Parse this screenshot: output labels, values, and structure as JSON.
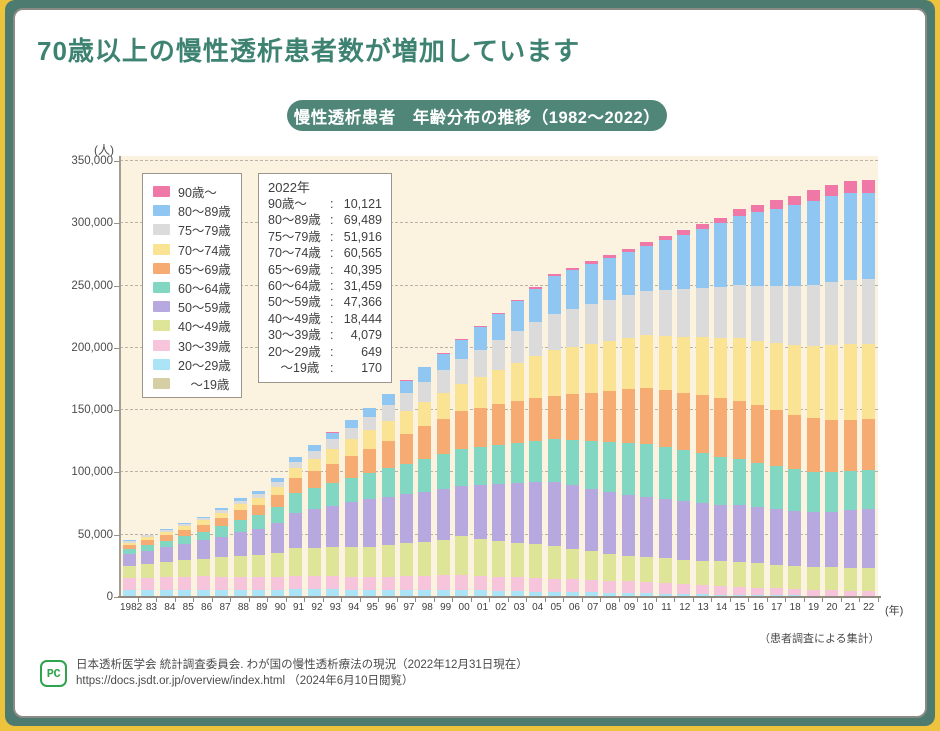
{
  "header": {
    "title": "70歳以上の慢性透析患者数が増加しています",
    "badge": "慢性透析患者　年齢分布の推移（1982〜2022）"
  },
  "chart_data": {
    "type": "bar",
    "stacked": true,
    "title": "慢性透析患者　年齢分布の推移（1982〜2022）",
    "ylabel": "(人)",
    "xlabel": "(年)",
    "ylim": [
      0,
      350000
    ],
    "ytick_interval": 50000,
    "grid": true,
    "legend_position": "upper-left",
    "plot_bg": "#FBF3DF",
    "source_note": "（患者調査による集計）",
    "years": [
      "1982",
      "83",
      "84",
      "85",
      "86",
      "87",
      "88",
      "89",
      "90",
      "91",
      "92",
      "93",
      "94",
      "95",
      "96",
      "97",
      "98",
      "99",
      "00",
      "01",
      "02",
      "03",
      "04",
      "05",
      "06",
      "07",
      "08",
      "09",
      "10",
      "11",
      "12",
      "13",
      "14",
      "15",
      "16",
      "17",
      "18",
      "19",
      "20",
      "21",
      "22"
    ],
    "series": [
      {
        "name": "90歳〜",
        "color": "#F078A6",
        "values": [
          20,
          20,
          25,
          30,
          30,
          45,
          60,
          75,
          100,
          150,
          160,
          170,
          185,
          200,
          280,
          360,
          440,
          520,
          600,
          820,
          1040,
          1260,
          1480,
          1700,
          1900,
          2100,
          2300,
          2550,
          2800,
          3300,
          3800,
          4300,
          4800,
          5500,
          6200,
          6900,
          7700,
          8600,
          9300,
          9800,
          10121
        ]
      },
      {
        "name": "80〜89歳",
        "color": "#8FC6F2",
        "values": [
          500,
          550,
          600,
          650,
          700,
          1300,
          1900,
          2400,
          3200,
          4000,
          4700,
          5500,
          6200,
          7000,
          8600,
          10200,
          11800,
          13500,
          15100,
          18000,
          21000,
          24000,
          27000,
          30000,
          31200,
          32400,
          33600,
          34800,
          36000,
          39800,
          43600,
          47400,
          51200,
          56000,
          59000,
          62000,
          65000,
          67500,
          69000,
          69800,
          69489
        ]
      },
      {
        "name": "75〜79歳",
        "color": "#DBDBDB",
        "values": [
          1300,
          1400,
          1600,
          1700,
          1800,
          2300,
          2800,
          3300,
          4000,
          5200,
          6500,
          7800,
          9200,
          10500,
          12500,
          14500,
          16500,
          18400,
          20200,
          22000,
          23800,
          25600,
          27300,
          29000,
          30500,
          32000,
          33500,
          34800,
          36000,
          37200,
          38400,
          39600,
          40800,
          42500,
          44000,
          45500,
          47000,
          49000,
          50500,
          51500,
          51916
        ]
      },
      {
        "name": "70〜74歳",
        "color": "#FAE493",
        "values": [
          2200,
          2500,
          2800,
          3200,
          3600,
          4200,
          4800,
          5300,
          6000,
          8000,
          9800,
          11600,
          13500,
          15500,
          16800,
          18000,
          19200,
          20400,
          21500,
          24600,
          27700,
          30800,
          33900,
          37000,
          38000,
          39000,
          40000,
          41000,
          42000,
          43500,
          45000,
          46500,
          48200,
          50000,
          52000,
          54000,
          56000,
          58000,
          60000,
          61000,
          60565
        ]
      },
      {
        "name": "65〜69歳",
        "color": "#F6AB72",
        "values": [
          3000,
          3600,
          4200,
          4900,
          5600,
          6600,
          7600,
          8400,
          9700,
          12000,
          13800,
          15500,
          17300,
          19000,
          21500,
          23900,
          26300,
          28600,
          30900,
          31800,
          32600,
          33400,
          34200,
          35000,
          37000,
          39000,
          41000,
          43000,
          45000,
          45500,
          46000,
          46500,
          47000,
          47000,
          46000,
          45000,
          44000,
          43000,
          42000,
          41000,
          40395
        ]
      },
      {
        "name": "60〜64歳",
        "color": "#82D7C2",
        "values": [
          4000,
          4700,
          5400,
          6100,
          6800,
          8300,
          9800,
          11000,
          12900,
          15500,
          16900,
          18300,
          19700,
          21000,
          22800,
          24500,
          26200,
          27900,
          29600,
          30500,
          31400,
          32300,
          33200,
          34000,
          36000,
          38000,
          40000,
          41800,
          43000,
          42000,
          41000,
          40000,
          38500,
          37000,
          35800,
          34600,
          33400,
          32400,
          31800,
          31500,
          31459
        ]
      },
      {
        "name": "50〜59歳",
        "color": "#B7A9E0",
        "values": [
          9400,
          10700,
          12000,
          13400,
          14800,
          16500,
          19200,
          21000,
          23800,
          28500,
          31000,
          33500,
          36000,
          38500,
          39000,
          39500,
          40000,
          40500,
          40300,
          42800,
          45200,
          47600,
          49800,
          52000,
          51200,
          50400,
          49600,
          48800,
          48000,
          47400,
          46800,
          46200,
          45600,
          45500,
          45000,
          44500,
          44000,
          43800,
          44500,
          46000,
          47366
        ]
      },
      {
        "name": "40〜49歳",
        "color": "#DEE598",
        "values": [
          9900,
          11000,
          12100,
          13200,
          14400,
          15700,
          17000,
          18000,
          19800,
          22500,
          22900,
          23300,
          23700,
          24000,
          25200,
          26400,
          27600,
          28800,
          30900,
          29900,
          28900,
          27900,
          27000,
          26000,
          24500,
          23000,
          21500,
          20500,
          20000,
          19800,
          19600,
          19500,
          19600,
          20000,
          19500,
          19000,
          18500,
          18200,
          18200,
          18300,
          18444
        ]
      },
      {
        "name": "30〜39歳",
        "color": "#F6C4DB",
        "values": [
          9700,
          10000,
          10200,
          10400,
          10600,
          10400,
          10200,
          9900,
          9800,
          10500,
          10500,
          10500,
          10500,
          10500,
          10700,
          11000,
          11300,
          11700,
          12100,
          11800,
          11500,
          11200,
          10850,
          10500,
          10200,
          9900,
          9600,
          9300,
          9000,
          8500,
          8000,
          7500,
          7000,
          6500,
          6100,
          5700,
          5300,
          4900,
          4600,
          4300,
          4079
        ]
      },
      {
        "name": "20〜29歳",
        "color": "#ABE3F7",
        "values": [
          4800,
          4900,
          5000,
          5100,
          5200,
          5250,
          5300,
          5300,
          5400,
          5700,
          5600,
          5500,
          5400,
          5200,
          5200,
          5200,
          5200,
          5200,
          5200,
          4900,
          4600,
          4300,
          4050,
          3800,
          3600,
          3400,
          3200,
          3000,
          2800,
          2550,
          2300,
          2050,
          1800,
          1500,
          1350,
          1200,
          1050,
          900,
          800,
          720,
          649
        ]
      },
      {
        "name": "　〜19歳",
        "color": "#D6CEA5",
        "values": [
          700,
          700,
          700,
          700,
          700,
          680,
          660,
          620,
          600,
          600,
          580,
          560,
          540,
          520,
          500,
          480,
          460,
          440,
          420,
          400,
          380,
          360,
          340,
          320,
          300,
          290,
          280,
          270,
          250,
          240,
          230,
          220,
          210,
          200,
          200,
          195,
          190,
          185,
          180,
          175,
          170
        ]
      }
    ],
    "annotation_box": {
      "header": "2022年",
      "rows": [
        {
          "label": "90歳〜",
          "value": "10,121"
        },
        {
          "label": "80〜89歳",
          "value": "69,489"
        },
        {
          "label": "75〜79歳",
          "value": "51,916"
        },
        {
          "label": "70〜74歳",
          "value": "60,565"
        },
        {
          "label": "65〜69歳",
          "value": "40,395"
        },
        {
          "label": "60〜64歳",
          "value": "31,459"
        },
        {
          "label": "50〜59歳",
          "value": "47,366"
        },
        {
          "label": "40〜49歳",
          "value": "18,444"
        },
        {
          "label": "30〜39歳",
          "value": "4,079"
        },
        {
          "label": "20〜29歳",
          "value": "649"
        },
        {
          "label": "　〜19歳",
          "value": "170"
        }
      ]
    }
  },
  "footer": {
    "logo": "PC",
    "line1": "日本透析医学会 統計調査委員会. わが国の慢性透析療法の現況（2022年12月31日現在）",
    "line2": "https://docs.jsdt.or.jp/overview/index.html （2024年6月10日閲覧）"
  }
}
